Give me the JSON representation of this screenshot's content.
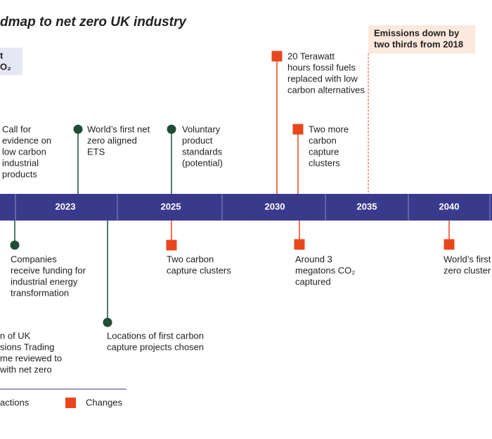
{
  "title": "dmap to net zero UK industry",
  "note_box": [
    "t",
    "O₂"
  ],
  "callout": [
    "Emissions down by",
    "two thirds from 2018"
  ],
  "timeline": [
    "2023",
    "2025",
    "2030",
    "2035",
    "2040"
  ],
  "above": [
    {
      "lines": [
        "Call for",
        "evidence on",
        "low carbon",
        "industrial",
        "products"
      ]
    },
    {
      "lines": [
        "World’s first net",
        "zero aligned",
        "ETS"
      ]
    },
    {
      "lines": [
        "Voluntary",
        "product",
        "standards",
        "(potential)"
      ]
    },
    {
      "lines": [
        "20 Terawatt",
        "hours fossil fuels",
        "replaced with low",
        "carbon alternatives"
      ]
    },
    {
      "lines": [
        "Two more",
        "carbon",
        "capture",
        "clusters"
      ]
    }
  ],
  "below": [
    {
      "lines": [
        "Companies",
        "receive funding for",
        "industrial energy",
        "transformation"
      ]
    },
    {
      "lines": [
        "n of UK",
        "sions Trading",
        "me reviewed to",
        "with net zero"
      ]
    },
    {
      "lines": [
        "Locations of first carbon",
        "capture projects chosen"
      ]
    },
    {
      "lines": [
        "Two carbon",
        "capture clusters"
      ]
    },
    {
      "lines": [
        "Around 3",
        "megatons CO₂",
        "captured"
      ]
    },
    {
      "lines": [
        "World’s first n",
        "zero cluster"
      ]
    }
  ],
  "legend": [
    "actions",
    "Changes"
  ]
}
